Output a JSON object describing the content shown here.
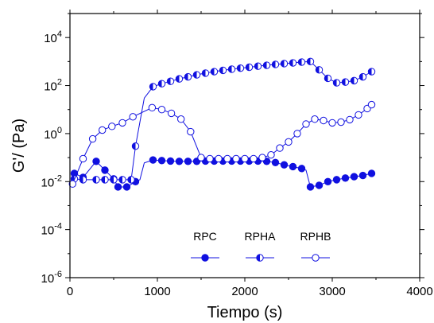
{
  "chart_data": {
    "type": "line",
    "xlabel": "Tiempo (s)",
    "ylabel": "G'/ (Pa)",
    "xlim": [
      0,
      4000
    ],
    "ylim_log10": [
      -6,
      5
    ],
    "yscale": "log",
    "x_ticks": [
      0,
      1000,
      2000,
      3000,
      4000
    ],
    "y_ticks": [
      {
        "base": "10",
        "exp": "4",
        "value": 10000
      },
      {
        "base": "10",
        "exp": "2",
        "value": 100
      },
      {
        "base": "10",
        "exp": "0",
        "value": 1
      },
      {
        "base": "10",
        "exp": "-2",
        "value": 0.01
      },
      {
        "base": "10",
        "exp": "-4",
        "value": 0.0001
      },
      {
        "base": "10",
        "exp": "-6",
        "value": 1e-06
      }
    ],
    "color": "#1010e0",
    "legend_position": "bottom-center",
    "series": [
      {
        "name": "RPC",
        "marker": "filled-circle",
        "points": [
          [
            50,
            0.022
          ],
          [
            150,
            0.015
          ],
          [
            300,
            0.07
          ],
          [
            400,
            0.03
          ],
          [
            500,
            0.013
          ],
          [
            550,
            0.006
          ],
          [
            650,
            0.006
          ],
          [
            750,
            0.01
          ],
          [
            950,
            0.08
          ],
          [
            1050,
            0.075
          ],
          [
            1150,
            0.072
          ],
          [
            1250,
            0.07
          ],
          [
            1350,
            0.07
          ],
          [
            1450,
            0.07
          ],
          [
            1550,
            0.072
          ],
          [
            1650,
            0.072
          ],
          [
            1750,
            0.072
          ],
          [
            1850,
            0.072
          ],
          [
            1950,
            0.072
          ],
          [
            2050,
            0.072
          ],
          [
            2150,
            0.072
          ],
          [
            2250,
            0.07
          ],
          [
            2350,
            0.062
          ],
          [
            2450,
            0.05
          ],
          [
            2550,
            0.042
          ],
          [
            2650,
            0.035
          ],
          [
            2750,
            0.006
          ],
          [
            2850,
            0.007
          ],
          [
            2950,
            0.01
          ],
          [
            3050,
            0.012
          ],
          [
            3150,
            0.014
          ],
          [
            3250,
            0.016
          ],
          [
            3350,
            0.018
          ],
          [
            3450,
            0.022
          ]
        ],
        "curve": [
          [
            50,
            0.022
          ],
          [
            150,
            0.015
          ],
          [
            300,
            0.07
          ],
          [
            400,
            0.03
          ],
          [
            500,
            0.013
          ],
          [
            550,
            0.006
          ],
          [
            650,
            0.006
          ],
          [
            750,
            0.01
          ],
          [
            800,
            0.012
          ],
          [
            850,
            0.06
          ],
          [
            950,
            0.08
          ],
          [
            1050,
            0.075
          ],
          [
            1150,
            0.072
          ],
          [
            1250,
            0.07
          ],
          [
            1350,
            0.07
          ],
          [
            1450,
            0.07
          ],
          [
            1550,
            0.072
          ],
          [
            1650,
            0.072
          ],
          [
            1750,
            0.072
          ],
          [
            1850,
            0.072
          ],
          [
            1950,
            0.072
          ],
          [
            2050,
            0.072
          ],
          [
            2150,
            0.072
          ],
          [
            2250,
            0.07
          ],
          [
            2350,
            0.062
          ],
          [
            2450,
            0.05
          ],
          [
            2550,
            0.042
          ],
          [
            2650,
            0.035
          ],
          [
            2700,
            0.03
          ],
          [
            2750,
            0.006
          ],
          [
            2850,
            0.007
          ],
          [
            2950,
            0.01
          ],
          [
            3050,
            0.012
          ],
          [
            3150,
            0.014
          ],
          [
            3250,
            0.016
          ],
          [
            3350,
            0.018
          ],
          [
            3450,
            0.022
          ]
        ]
      },
      {
        "name": "RPHA",
        "marker": "half-filled-circle",
        "points": [
          [
            50,
            0.013
          ],
          [
            150,
            0.012
          ],
          [
            300,
            0.012
          ],
          [
            400,
            0.012
          ],
          [
            500,
            0.012
          ],
          [
            600,
            0.012
          ],
          [
            700,
            0.012
          ],
          [
            750,
            0.3
          ],
          [
            950,
            90
          ],
          [
            1050,
            120
          ],
          [
            1150,
            150
          ],
          [
            1250,
            190
          ],
          [
            1350,
            230
          ],
          [
            1450,
            280
          ],
          [
            1550,
            330
          ],
          [
            1650,
            380
          ],
          [
            1750,
            430
          ],
          [
            1850,
            480
          ],
          [
            1950,
            530
          ],
          [
            2050,
            580
          ],
          [
            2150,
            640
          ],
          [
            2250,
            700
          ],
          [
            2350,
            760
          ],
          [
            2450,
            820
          ],
          [
            2550,
            880
          ],
          [
            2650,
            950
          ],
          [
            2750,
            1000
          ],
          [
            2850,
            450
          ],
          [
            2950,
            200
          ],
          [
            3050,
            130
          ],
          [
            3150,
            140
          ],
          [
            3250,
            160
          ],
          [
            3350,
            230
          ],
          [
            3450,
            380
          ]
        ],
        "curve": [
          [
            50,
            0.013
          ],
          [
            150,
            0.012
          ],
          [
            300,
            0.012
          ],
          [
            400,
            0.012
          ],
          [
            500,
            0.012
          ],
          [
            600,
            0.012
          ],
          [
            700,
            0.012
          ],
          [
            750,
            0.3
          ],
          [
            800,
            3
          ],
          [
            850,
            30
          ],
          [
            950,
            90
          ],
          [
            1050,
            120
          ],
          [
            1150,
            150
          ],
          [
            1250,
            190
          ],
          [
            1350,
            230
          ],
          [
            1450,
            280
          ],
          [
            1550,
            330
          ],
          [
            1650,
            380
          ],
          [
            1750,
            430
          ],
          [
            1850,
            480
          ],
          [
            1950,
            530
          ],
          [
            2050,
            580
          ],
          [
            2150,
            640
          ],
          [
            2250,
            700
          ],
          [
            2350,
            760
          ],
          [
            2450,
            820
          ],
          [
            2550,
            880
          ],
          [
            2650,
            950
          ],
          [
            2750,
            1000
          ],
          [
            2850,
            450
          ],
          [
            2950,
            200
          ],
          [
            3050,
            130
          ],
          [
            3150,
            140
          ],
          [
            3250,
            160
          ],
          [
            3350,
            230
          ],
          [
            3450,
            380
          ]
        ]
      },
      {
        "name": "RPHB",
        "marker": "open-circle",
        "points": [
          [
            30,
            0.008
          ],
          [
            150,
            0.09
          ],
          [
            260,
            0.6
          ],
          [
            370,
            1.4
          ],
          [
            480,
            2.0
          ],
          [
            600,
            2.8
          ],
          [
            720,
            5.0
          ],
          [
            940,
            12
          ],
          [
            1050,
            10
          ],
          [
            1160,
            7
          ],
          [
            1270,
            4
          ],
          [
            1380,
            1.2
          ],
          [
            1500,
            0.1
          ],
          [
            1600,
            0.09
          ],
          [
            1700,
            0.09
          ],
          [
            1800,
            0.09
          ],
          [
            1900,
            0.09
          ],
          [
            2000,
            0.09
          ],
          [
            2100,
            0.09
          ],
          [
            2200,
            0.1
          ],
          [
            2300,
            0.13
          ],
          [
            2400,
            0.25
          ],
          [
            2500,
            0.45
          ],
          [
            2600,
            1.0
          ],
          [
            2700,
            2.5
          ],
          [
            2800,
            4.0
          ],
          [
            2900,
            3.5
          ],
          [
            3000,
            2.8
          ],
          [
            3100,
            3.0
          ],
          [
            3200,
            3.8
          ],
          [
            3300,
            6.0
          ],
          [
            3400,
            11
          ],
          [
            3450,
            16
          ]
        ],
        "curve": [
          [
            30,
            0.008
          ],
          [
            150,
            0.09
          ],
          [
            260,
            0.6
          ],
          [
            370,
            1.4
          ],
          [
            480,
            2.0
          ],
          [
            600,
            2.8
          ],
          [
            720,
            5.0
          ],
          [
            940,
            12
          ],
          [
            1050,
            10
          ],
          [
            1160,
            7
          ],
          [
            1270,
            4
          ],
          [
            1380,
            1.2
          ],
          [
            1500,
            0.1
          ],
          [
            1600,
            0.09
          ],
          [
            1700,
            0.09
          ],
          [
            1800,
            0.09
          ],
          [
            1900,
            0.09
          ],
          [
            2000,
            0.09
          ],
          [
            2100,
            0.09
          ],
          [
            2200,
            0.1
          ],
          [
            2300,
            0.13
          ],
          [
            2400,
            0.25
          ],
          [
            2500,
            0.45
          ],
          [
            2600,
            1.0
          ],
          [
            2700,
            2.5
          ],
          [
            2800,
            4.0
          ],
          [
            2900,
            3.5
          ],
          [
            3000,
            2.8
          ],
          [
            3100,
            3.0
          ],
          [
            3200,
            3.8
          ],
          [
            3300,
            6.0
          ],
          [
            3400,
            11
          ],
          [
            3450,
            16
          ]
        ]
      }
    ]
  }
}
